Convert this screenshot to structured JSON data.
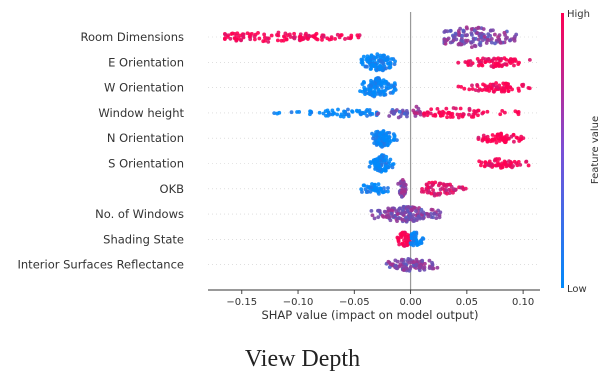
{
  "chart_data": {
    "type": "scatter",
    "subtype": "shap-beeswarm-summary",
    "xlabel": "SHAP value (impact on model output)",
    "xlim": [
      -0.18,
      0.115
    ],
    "x_ticks": [
      -0.15,
      -0.1,
      -0.05,
      0.0,
      0.05,
      0.1
    ],
    "x_tick_labels": [
      "−0.15",
      "−0.10",
      "−0.05",
      "0.00",
      "0.05",
      "0.10"
    ],
    "features": [
      "Room Dimensions",
      "E Orientation",
      "W Orientation",
      "Window height",
      "N Orientation",
      "S Orientation",
      "OKB",
      "No. of  Windows",
      "Shading State",
      "Interior Surfaces Reflectance"
    ],
    "series": [
      {
        "feature": "Room Dimensions",
        "clusters": [
          {
            "x_min": -0.165,
            "x_max": -0.035,
            "center": -0.125,
            "count": 110,
            "value": 1.0,
            "height": 5
          },
          {
            "x_min": 0.03,
            "x_max": 0.095,
            "center": 0.055,
            "count": 130,
            "value": 0.5,
            "height": 11
          }
        ]
      },
      {
        "feature": "E Orientation",
        "clusters": [
          {
            "x_min": -0.045,
            "x_max": -0.013,
            "center": -0.03,
            "count": 110,
            "value": 0.0,
            "height": 10
          },
          {
            "x_min": 0.04,
            "x_max": 0.106,
            "center": 0.075,
            "count": 70,
            "value": 1.0,
            "height": 5
          }
        ]
      },
      {
        "feature": "W Orientation",
        "clusters": [
          {
            "x_min": -0.045,
            "x_max": -0.013,
            "center": -0.03,
            "count": 110,
            "value": 0.0,
            "height": 10
          },
          {
            "x_min": 0.04,
            "x_max": 0.106,
            "center": 0.075,
            "count": 70,
            "value": 1.0,
            "height": 5
          }
        ]
      },
      {
        "feature": "Window height",
        "clusters": [
          {
            "x_min": -0.122,
            "x_max": -0.03,
            "center": -0.06,
            "count": 60,
            "value": 0.0,
            "height": 4
          },
          {
            "x_min": -0.03,
            "x_max": -0.003,
            "center": -0.01,
            "count": 25,
            "value": 0.35,
            "height": 5
          },
          {
            "x_min": 0.002,
            "x_max": 0.01,
            "center": 0.005,
            "count": 12,
            "value": 0.6,
            "height": 7
          },
          {
            "x_min": 0.012,
            "x_max": 0.102,
            "center": 0.04,
            "count": 65,
            "value": 1.0,
            "height": 5
          }
        ]
      },
      {
        "feature": "N Orientation",
        "clusters": [
          {
            "x_min": -0.037,
            "x_max": -0.012,
            "center": -0.025,
            "count": 90,
            "value": 0.0,
            "height": 9
          },
          {
            "x_min": 0.06,
            "x_max": 0.104,
            "center": 0.08,
            "count": 60,
            "value": 1.0,
            "height": 5
          }
        ]
      },
      {
        "feature": "S Orientation",
        "clusters": [
          {
            "x_min": -0.037,
            "x_max": -0.015,
            "center": -0.026,
            "count": 90,
            "value": 0.0,
            "height": 9
          },
          {
            "x_min": 0.06,
            "x_max": 0.106,
            "center": 0.08,
            "count": 60,
            "value": 1.0,
            "height": 5
          }
        ]
      },
      {
        "feature": "OKB",
        "clusters": [
          {
            "x_min": -0.045,
            "x_max": -0.02,
            "center": -0.032,
            "count": 45,
            "value": 0.0,
            "height": 6
          },
          {
            "x_min": -0.012,
            "x_max": -0.002,
            "center": -0.007,
            "count": 40,
            "value": 0.55,
            "height": 9
          },
          {
            "x_min": 0.01,
            "x_max": 0.05,
            "center": 0.022,
            "count": 60,
            "value": 0.85,
            "height": 7
          }
        ]
      },
      {
        "feature": "No. of  Windows",
        "clusters": [
          {
            "x_min": -0.035,
            "x_max": 0.028,
            "center": -0.005,
            "count": 140,
            "value": 0.5,
            "height": 8
          }
        ]
      },
      {
        "feature": "Shading State",
        "clusters": [
          {
            "x_min": -0.012,
            "x_max": 0.0,
            "center": -0.006,
            "count": 50,
            "value": 1.0,
            "height": 8
          },
          {
            "x_min": 0.0,
            "x_max": 0.012,
            "center": 0.004,
            "count": 40,
            "value": 0.0,
            "height": 8
          }
        ]
      },
      {
        "feature": "Interior Surfaces Reflectance",
        "clusters": [
          {
            "x_min": -0.022,
            "x_max": 0.025,
            "center": 0.0,
            "count": 90,
            "value": 0.5,
            "height": 7
          }
        ]
      }
    ],
    "colorbar": {
      "label": "Feature value",
      "high_label": "High",
      "low_label": "Low",
      "colors": [
        "#008afb",
        "#ff0052"
      ]
    },
    "caption": "View Depth"
  }
}
